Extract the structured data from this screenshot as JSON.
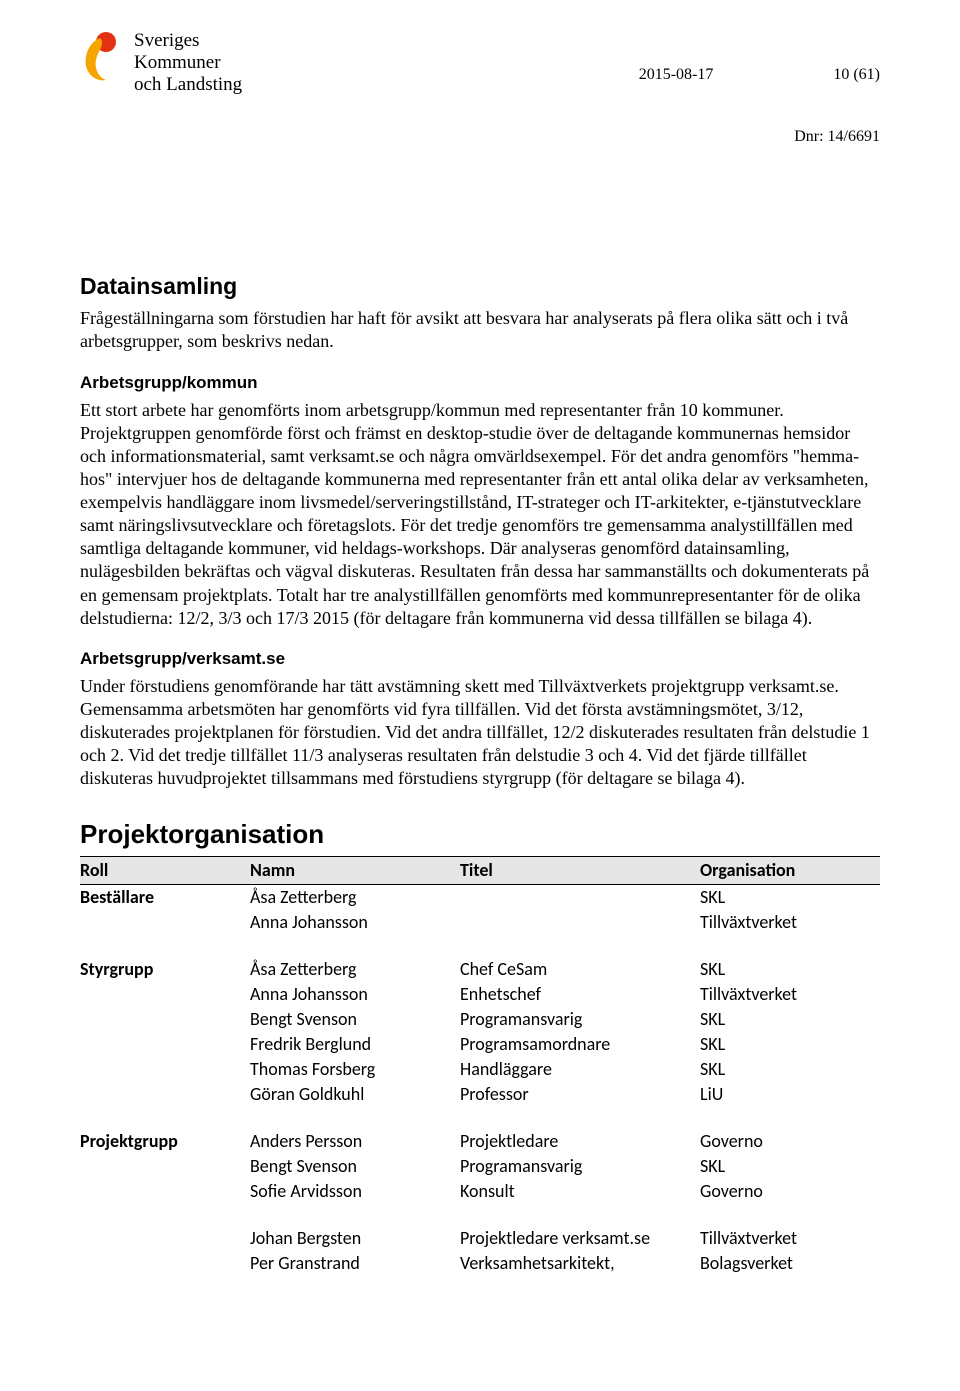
{
  "header": {
    "logo_lines": [
      "Sveriges",
      "Kommuner",
      "och Landsting"
    ],
    "date": "2015-08-17",
    "page": "10 (61)",
    "dnr": "Dnr: 14/6691"
  },
  "section1": {
    "title": "Datainsamling",
    "intro": "Frågeställningarna som förstudien har haft för avsikt att besvara har analyserats på flera olika sätt och i två arbetsgrupper, som beskrivs nedan.",
    "sub1_head": "Arbetsgrupp/kommun",
    "sub1_body": "Ett stort arbete har genomförts inom arbetsgrupp/kommun med representanter från 10 kommuner. Projektgruppen genomförde först och främst en desktop-studie över de deltagande kommunernas hemsidor och informationsmaterial, samt verksamt.se och några omvärldsexempel. För det andra genomförs \"hemma-hos\" intervjuer hos de deltagande kommunerna med representanter från ett antal olika delar av verksamheten, exempelvis handläggare inom livsmedel/serveringstillstånd, IT-strateger och IT-arkitekter, e-tjänstutvecklare samt näringslivsutvecklare och företagslots. För det tredje genomförs tre gemensamma analystillfällen med samtliga deltagande kommuner, vid heldags-workshops. Där analyseras genomförd datainsamling, nulägesbilden bekräftas och vägval diskuteras. Resultaten från dessa har sammanställts och dokumenterats på en gemensam projektplats. Totalt har tre analystillfällen genomförts med kommunrepresentanter för de olika delstudierna: 12/2, 3/3 och 17/3 2015 (för deltagare från kommunerna vid dessa tillfällen se bilaga 4).",
    "sub2_head": "Arbetsgrupp/verksamt.se",
    "sub2_body": "Under förstudiens genomförande har tätt avstämning skett med Tillväxtverkets projektgrupp verksamt.se. Gemensamma arbetsmöten har genomförts vid fyra tillfällen. Vid det första avstämningsmötet, 3/12, diskuterades projektplanen för förstudien. Vid det andra tillfället, 12/2 diskuterades resultaten från delstudie 1 och 2. Vid det tredje tillfället 11/3 analyseras resultaten från delstudie 3 och 4. Vid det fjärde tillfället diskuteras huvudprojektet tillsammans med förstudiens styrgrupp (för deltagare se bilaga 4)."
  },
  "org": {
    "title": "Projektorganisation",
    "columns": [
      "Roll",
      "Namn",
      "Titel",
      "Organisation"
    ],
    "groups": [
      {
        "roll": "Beställare",
        "rows": [
          {
            "namn": "Åsa Zetterberg",
            "titel": "",
            "org": "SKL"
          },
          {
            "namn": "Anna Johansson",
            "titel": "",
            "org": "Tillväxtverket"
          }
        ]
      },
      {
        "roll": "Styrgrupp",
        "rows": [
          {
            "namn": "Åsa Zetterberg",
            "titel": "Chef CeSam",
            "org": "SKL"
          },
          {
            "namn": "Anna Johansson",
            "titel": "Enhetschef",
            "org": "Tillväxtverket"
          },
          {
            "namn": "Bengt Svenson",
            "titel": "Programansvarig",
            "org": "SKL"
          },
          {
            "namn": "Fredrik Berglund",
            "titel": "Programsamordnare",
            "org": "SKL"
          },
          {
            "namn": "Thomas Forsberg",
            "titel": "Handläggare",
            "org": "SKL"
          },
          {
            "namn": "Göran Goldkuhl",
            "titel": "Professor",
            "org": "LiU"
          }
        ]
      },
      {
        "roll": "Projektgrupp",
        "rows": [
          {
            "namn": "Anders Persson",
            "titel": "Projektledare",
            "org": "Governo"
          },
          {
            "namn": "Bengt Svenson",
            "titel": "Programansvarig",
            "org": "SKL"
          },
          {
            "namn": "Sofie Arvidsson",
            "titel": "Konsult",
            "org": "Governo"
          }
        ]
      },
      {
        "roll": "",
        "rows": [
          {
            "namn": "Johan Bergsten",
            "titel": "Projektledare verksamt.se",
            "org": "Tillväxtverket"
          },
          {
            "namn": "Per Granstrand",
            "titel": "Verksamhetsarkitekt,",
            "org": "Bolagsverket"
          }
        ]
      }
    ]
  }
}
